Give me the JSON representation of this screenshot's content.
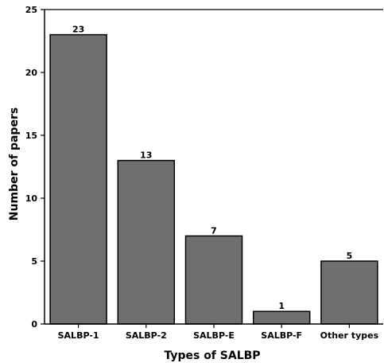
{
  "chart_data": {
    "type": "bar",
    "title": "",
    "xlabel": "Types of SALBP",
    "ylabel": "Number of papers",
    "categories": [
      "SALBP-1",
      "SALBP-2",
      "SALBP-E",
      "SALBP-F",
      "Other types"
    ],
    "values": [
      23,
      13,
      7,
      1,
      5
    ],
    "data_labels": [
      "23",
      "13",
      "7",
      "1",
      "5"
    ],
    "ylim": [
      0,
      25
    ],
    "yticks": [
      0,
      5,
      10,
      15,
      20,
      25
    ],
    "grid": false,
    "legend": "none",
    "colors": {
      "bar": "#6f6f6f",
      "edge": "#000000"
    }
  }
}
